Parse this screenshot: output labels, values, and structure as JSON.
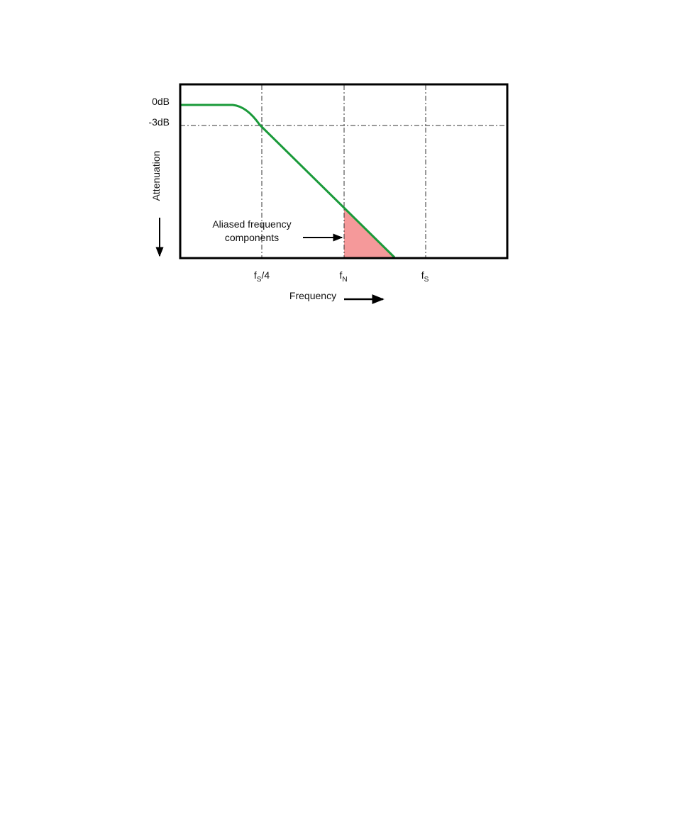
{
  "diagram": {
    "y_axis": {
      "label": "Attenuation",
      "tick_0db": "0dB",
      "tick_3db": "-3dB"
    },
    "x_axis": {
      "label": "Frequency",
      "tick_fs4": {
        "base": "f",
        "sub": "S",
        "suffix": "/4"
      },
      "tick_fn": {
        "base": "f",
        "sub": "N"
      },
      "tick_fs": {
        "base": "f",
        "sub": "S"
      }
    },
    "annotation": {
      "line1": "Aliased frequency",
      "line2": "components"
    },
    "colors": {
      "curve": "#1a9a3a",
      "aliased_fill": "#f5999a",
      "frame": "#000000",
      "grid": "#333333"
    }
  }
}
